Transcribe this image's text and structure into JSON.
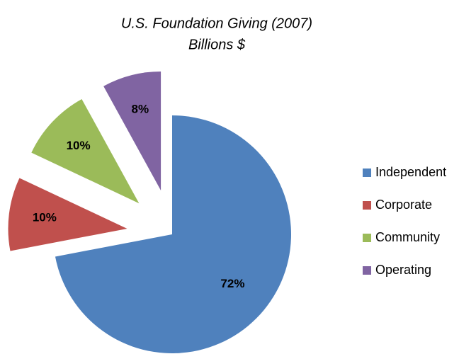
{
  "chart_data": {
    "type": "pie",
    "title": "U.S. Foundation Giving (2007)",
    "subtitle": "Billions $",
    "categories": [
      "Independent",
      "Corporate",
      "Community",
      "Operating"
    ],
    "values": [
      72,
      10,
      10,
      8
    ],
    "value_labels": [
      "72%",
      "10%",
      "10%",
      "8%"
    ],
    "colors": [
      "#4f81bd",
      "#c0504d",
      "#9bbb59",
      "#8064a2"
    ],
    "exploded": [
      false,
      true,
      true,
      true
    ],
    "legend": "right"
  }
}
